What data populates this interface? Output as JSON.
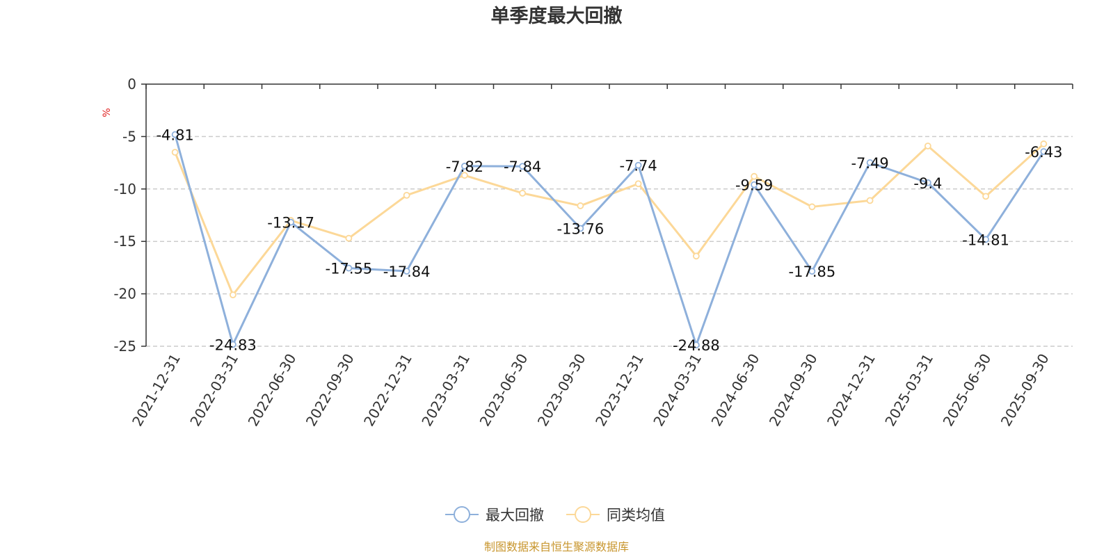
{
  "chart_data": {
    "type": "line",
    "title": "单季度最大回撤",
    "y_unit": "%",
    "ylim": [
      -25,
      0
    ],
    "y_ticks": [
      0,
      -5,
      -10,
      -15,
      -20,
      -25
    ],
    "grid": "horizontal-dashed",
    "legend_position": "bottom-center",
    "categories": [
      "2021-12-31",
      "2022-03-31",
      "2022-06-30",
      "2022-09-30",
      "2022-12-31",
      "2023-03-31",
      "2023-06-30",
      "2023-09-30",
      "2023-12-31",
      "2024-03-31",
      "2024-06-30",
      "2024-09-30",
      "2024-12-31",
      "2025-03-31",
      "2025-06-30",
      "2025-09-30"
    ],
    "series": [
      {
        "name": "最大回撤",
        "color": "#8eb0db",
        "values": [
          -4.81,
          -24.83,
          -13.17,
          -17.55,
          -17.84,
          -7.82,
          -7.84,
          -13.76,
          -7.74,
          -24.88,
          -9.59,
          -17.85,
          -7.49,
          -9.4,
          -14.81,
          -6.43
        ],
        "data_labels": [
          "-4.81",
          "-24.83",
          "-13.17",
          "-17.55",
          "-17.84",
          "-7.82",
          "-7.84",
          "-13.76",
          "-7.74",
          "-24.88",
          "-9.59",
          "-17.85",
          "-7.49",
          "-9.4",
          "-14.81",
          "-6.43"
        ]
      },
      {
        "name": "同类均值",
        "color": "#fcd898",
        "values": [
          -6.5,
          -20.1,
          -13.0,
          -14.7,
          -10.6,
          -8.7,
          -10.4,
          -11.6,
          -9.5,
          -16.4,
          -8.8,
          -11.7,
          -11.1,
          -5.9,
          -10.7,
          -5.7
        ]
      }
    ],
    "source": "制图数据来自恒生聚源数据库",
    "source_color": "#c8962e",
    "unit_color": "#e02020",
    "axis_color": "#333333",
    "grid_color": "#cccccc",
    "text_color": "#333333"
  }
}
